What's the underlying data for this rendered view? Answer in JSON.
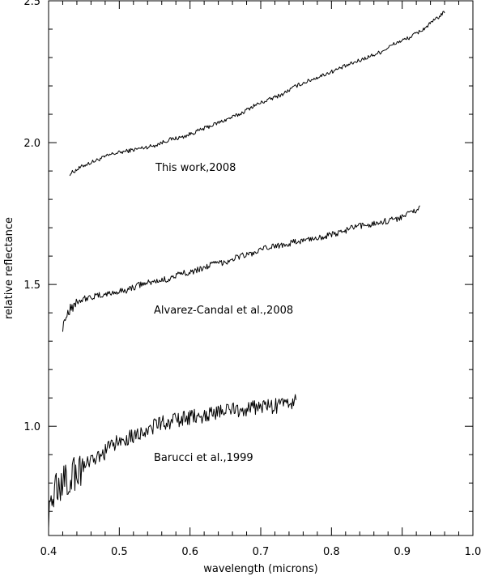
{
  "chart_data": {
    "type": "line",
    "title": "",
    "xlabel": "wavelength (microns)",
    "ylabel": "relative reflectance",
    "xlim": [
      0.4,
      1.0
    ],
    "ylim": [
      0.615,
      2.5
    ],
    "xticks": [
      0.4,
      0.5,
      0.6,
      0.7,
      0.8,
      0.9,
      1.0
    ],
    "xtick_labels": [
      "0.4",
      "0.5",
      "0.6",
      "0.7",
      "0.8",
      "0.9",
      "1.0"
    ],
    "yticks": [
      1.0,
      1.5,
      2.0,
      2.5
    ],
    "ytick_labels": [
      "1.0",
      "1.5",
      "2.0",
      "2.5"
    ],
    "grid": false,
    "series": [
      {
        "name": "This work,2008",
        "x": [
          0.43,
          0.45,
          0.47,
          0.49,
          0.51,
          0.53,
          0.55,
          0.57,
          0.59,
          0.61,
          0.63,
          0.65,
          0.67,
          0.69,
          0.71,
          0.73,
          0.75,
          0.77,
          0.79,
          0.81,
          0.83,
          0.85,
          0.87,
          0.89,
          0.91,
          0.93,
          0.95,
          0.96
        ],
        "y": [
          1.89,
          1.92,
          1.94,
          1.96,
          1.97,
          1.98,
          1.99,
          2.01,
          2.02,
          2.04,
          2.06,
          2.08,
          2.1,
          2.13,
          2.15,
          2.17,
          2.2,
          2.22,
          2.24,
          2.26,
          2.28,
          2.3,
          2.32,
          2.35,
          2.37,
          2.4,
          2.44,
          2.46
        ]
      },
      {
        "name": "Alvarez-Candal et al.,2008",
        "x": [
          0.42,
          0.43,
          0.44,
          0.45,
          0.47,
          0.49,
          0.51,
          0.53,
          0.55,
          0.57,
          0.59,
          0.61,
          0.63,
          0.65,
          0.67,
          0.69,
          0.71,
          0.73,
          0.75,
          0.77,
          0.79,
          0.81,
          0.83,
          0.85,
          0.87,
          0.89,
          0.91,
          0.925
        ],
        "y": [
          1.36,
          1.42,
          1.44,
          1.45,
          1.46,
          1.47,
          1.48,
          1.5,
          1.51,
          1.52,
          1.54,
          1.55,
          1.57,
          1.58,
          1.6,
          1.61,
          1.63,
          1.64,
          1.65,
          1.66,
          1.67,
          1.68,
          1.7,
          1.71,
          1.72,
          1.73,
          1.75,
          1.77
        ]
      },
      {
        "name": "Barucci et al.,1999",
        "x": [
          0.4,
          0.41,
          0.42,
          0.43,
          0.44,
          0.45,
          0.46,
          0.47,
          0.48,
          0.49,
          0.5,
          0.52,
          0.54,
          0.56,
          0.58,
          0.6,
          0.62,
          0.64,
          0.66,
          0.68,
          0.7,
          0.72,
          0.74,
          0.75
        ],
        "y": [
          0.7,
          0.78,
          0.8,
          0.82,
          0.84,
          0.86,
          0.87,
          0.89,
          0.91,
          0.93,
          0.95,
          0.97,
          0.99,
          1.01,
          1.02,
          1.03,
          1.04,
          1.05,
          1.06,
          1.06,
          1.07,
          1.07,
          1.08,
          1.1
        ]
      }
    ]
  }
}
